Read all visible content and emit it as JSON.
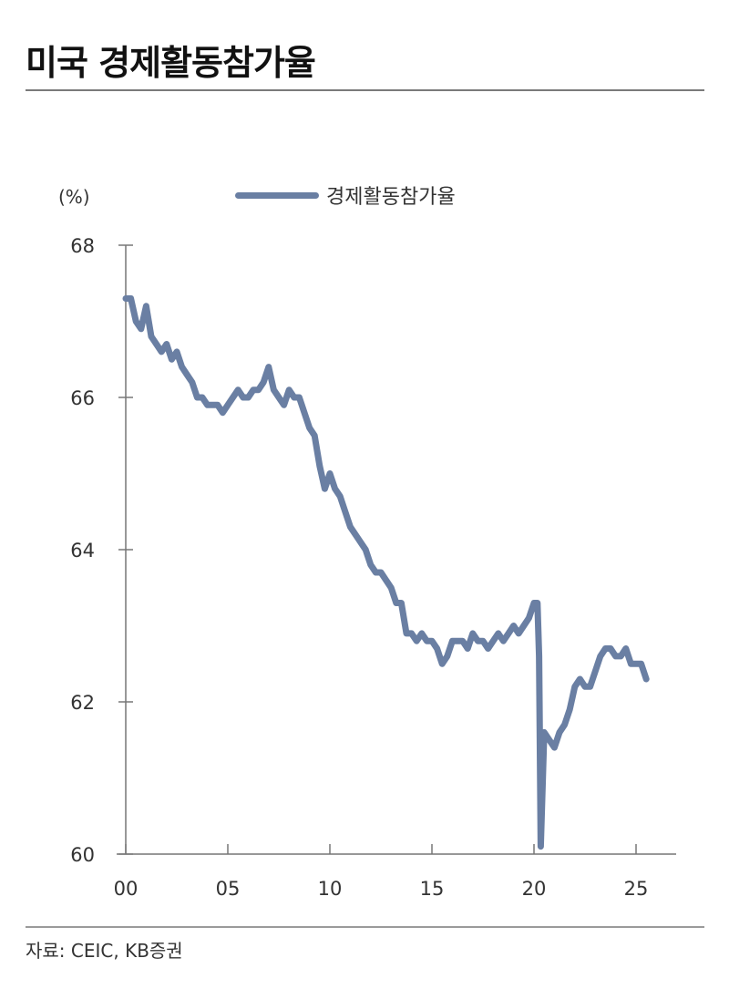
{
  "title": "미국 경제활동참가율",
  "unit_label": "(%)",
  "legend": {
    "label": "경제활동참가율",
    "color": "#6a7fa3"
  },
  "source": "자료: CEIC, KB증권",
  "chart_data": {
    "type": "line",
    "title": "미국 경제활동참가율",
    "xlabel": "",
    "ylabel": "(%)",
    "ylim": [
      60,
      68
    ],
    "xlim": [
      2000,
      2027
    ],
    "y_ticks": [
      60,
      62,
      64,
      66,
      68
    ],
    "x_ticks": [
      2000,
      2005,
      2010,
      2015,
      2020,
      2025
    ],
    "x_tick_labels": [
      "00",
      "05",
      "10",
      "15",
      "20",
      "25"
    ],
    "grid": false,
    "legend_position": "top-center",
    "series": [
      {
        "name": "경제활동참가율",
        "color": "#6a7fa3",
        "x": [
          2000.0,
          2000.25,
          2000.5,
          2000.75,
          2001.0,
          2001.25,
          2001.5,
          2001.75,
          2002.0,
          2002.25,
          2002.5,
          2002.75,
          2003.0,
          2003.25,
          2003.5,
          2003.75,
          2004.0,
          2004.25,
          2004.5,
          2004.75,
          2005.0,
          2005.25,
          2005.5,
          2005.75,
          2006.0,
          2006.25,
          2006.5,
          2006.75,
          2007.0,
          2007.25,
          2007.5,
          2007.75,
          2008.0,
          2008.25,
          2008.5,
          2008.75,
          2009.0,
          2009.25,
          2009.5,
          2009.75,
          2010.0,
          2010.25,
          2010.5,
          2010.75,
          2011.0,
          2011.25,
          2011.5,
          2011.75,
          2012.0,
          2012.25,
          2012.5,
          2012.75,
          2013.0,
          2013.25,
          2013.5,
          2013.75,
          2014.0,
          2014.25,
          2014.5,
          2014.75,
          2015.0,
          2015.25,
          2015.5,
          2015.75,
          2016.0,
          2016.25,
          2016.5,
          2016.75,
          2017.0,
          2017.25,
          2017.5,
          2017.75,
          2018.0,
          2018.25,
          2018.5,
          2018.75,
          2019.0,
          2019.25,
          2019.5,
          2019.75,
          2020.0,
          2020.17,
          2020.25,
          2020.33,
          2020.5,
          2020.75,
          2021.0,
          2021.25,
          2021.5,
          2021.75,
          2022.0,
          2022.25,
          2022.5,
          2022.75,
          2023.0,
          2023.25,
          2023.5,
          2023.75,
          2024.0,
          2024.25,
          2024.5,
          2024.75,
          2025.0,
          2025.25,
          2025.5
        ],
        "values": [
          67.3,
          67.3,
          67.0,
          66.9,
          67.2,
          66.8,
          66.7,
          66.6,
          66.7,
          66.5,
          66.6,
          66.4,
          66.3,
          66.2,
          66.0,
          66.0,
          65.9,
          65.9,
          65.9,
          65.8,
          65.9,
          66.0,
          66.1,
          66.0,
          66.0,
          66.1,
          66.1,
          66.2,
          66.4,
          66.1,
          66.0,
          65.9,
          66.1,
          66.0,
          66.0,
          65.8,
          65.6,
          65.5,
          65.1,
          64.8,
          65.0,
          64.8,
          64.7,
          64.5,
          64.3,
          64.2,
          64.1,
          64.0,
          63.8,
          63.7,
          63.7,
          63.6,
          63.5,
          63.3,
          63.3,
          62.9,
          62.9,
          62.8,
          62.9,
          62.8,
          62.8,
          62.7,
          62.5,
          62.6,
          62.8,
          62.8,
          62.8,
          62.7,
          62.9,
          62.8,
          62.8,
          62.7,
          62.8,
          62.9,
          62.8,
          62.9,
          63.0,
          62.9,
          63.0,
          63.1,
          63.3,
          63.3,
          62.6,
          60.1,
          61.6,
          61.5,
          61.4,
          61.6,
          61.7,
          61.9,
          62.2,
          62.3,
          62.2,
          62.2,
          62.4,
          62.6,
          62.7,
          62.7,
          62.6,
          62.6,
          62.7,
          62.5,
          62.5,
          62.5,
          62.3
        ]
      }
    ]
  }
}
